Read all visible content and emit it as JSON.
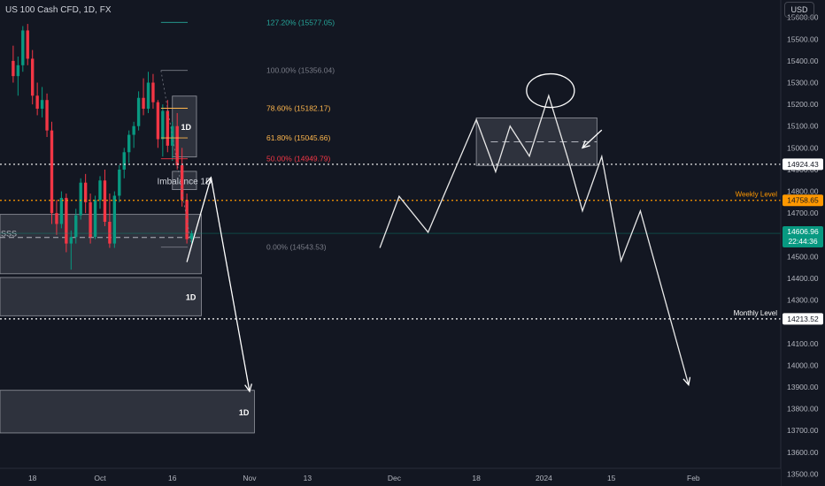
{
  "header": {
    "symbol": "US 100 Cash CFD, 1D, FX",
    "currency": "USD"
  },
  "chart_data": {
    "type": "candlestick",
    "y_axis": {
      "ticks": [
        "15600.00",
        "15500.00",
        "15400.00",
        "15300.00",
        "15200.00",
        "15100.00",
        "15000.00",
        "14900.00",
        "14800.00",
        "14700.00",
        "14600.00",
        "14500.00",
        "14400.00",
        "14300.00",
        "14200.00",
        "14100.00",
        "14000.00",
        "13900.00",
        "13800.00",
        "13700.00",
        "13600.00",
        "13500.00"
      ],
      "tick_values": [
        15600,
        15500,
        15400,
        15300,
        15200,
        15100,
        15000,
        14900,
        14800,
        14700,
        14600,
        14500,
        14400,
        14300,
        14200,
        14100,
        14000,
        13900,
        13800,
        13700,
        13600,
        13500
      ],
      "ylim": [
        13445,
        15680
      ]
    },
    "x_axis": {
      "ticks": [
        "18",
        "Oct",
        "16",
        "Nov",
        "13",
        "Dec",
        "18",
        "2024",
        "15",
        "Feb"
      ],
      "tick_days": [
        -14,
        0,
        15,
        31,
        43,
        61,
        78,
        92,
        106,
        123
      ]
    },
    "candles": [
      {
        "day": -18,
        "o": 15400,
        "h": 15470,
        "l": 15300,
        "c": 15330
      },
      {
        "day": -17,
        "o": 15330,
        "h": 15420,
        "l": 15240,
        "c": 15380
      },
      {
        "day": -16,
        "o": 15380,
        "h": 15560,
        "l": 15350,
        "c": 15540
      },
      {
        "day": -15,
        "o": 15540,
        "h": 15570,
        "l": 15380,
        "c": 15410
      },
      {
        "day": -14,
        "o": 15410,
        "h": 15450,
        "l": 15200,
        "c": 15240
      },
      {
        "day": -13,
        "o": 15240,
        "h": 15300,
        "l": 15150,
        "c": 15180
      },
      {
        "day": -12,
        "o": 15180,
        "h": 15280,
        "l": 15140,
        "c": 15220
      },
      {
        "day": -11,
        "o": 15220,
        "h": 15250,
        "l": 15050,
        "c": 15080
      },
      {
        "day": -10,
        "o": 15080,
        "h": 15120,
        "l": 14650,
        "c": 14700
      },
      {
        "day": -9,
        "o": 14700,
        "h": 14760,
        "l": 14600,
        "c": 14650
      },
      {
        "day": -8,
        "o": 14650,
        "h": 14800,
        "l": 14630,
        "c": 14770
      },
      {
        "day": -7,
        "o": 14770,
        "h": 14790,
        "l": 14520,
        "c": 14560
      },
      {
        "day": -6,
        "o": 14560,
        "h": 14620,
        "l": 14440,
        "c": 14590
      },
      {
        "day": -5,
        "o": 14590,
        "h": 14720,
        "l": 14560,
        "c": 14690
      },
      {
        "day": -4,
        "o": 14690,
        "h": 14860,
        "l": 14670,
        "c": 14840
      },
      {
        "day": -3,
        "o": 14840,
        "h": 14880,
        "l": 14700,
        "c": 14750
      },
      {
        "day": -2,
        "o": 14750,
        "h": 14790,
        "l": 14560,
        "c": 14590
      },
      {
        "day": -1,
        "o": 14590,
        "h": 14780,
        "l": 14580,
        "c": 14760
      },
      {
        "day": 0,
        "o": 14760,
        "h": 14870,
        "l": 14720,
        "c": 14850
      },
      {
        "day": 1,
        "o": 14850,
        "h": 14900,
        "l": 14640,
        "c": 14660
      },
      {
        "day": 2,
        "o": 14660,
        "h": 14790,
        "l": 14540,
        "c": 14560
      },
      {
        "day": 3,
        "o": 14560,
        "h": 14800,
        "l": 14540,
        "c": 14780
      },
      {
        "day": 4,
        "o": 14780,
        "h": 14920,
        "l": 14750,
        "c": 14900
      },
      {
        "day": 5,
        "o": 14900,
        "h": 15000,
        "l": 14860,
        "c": 14980
      },
      {
        "day": 6,
        "o": 14980,
        "h": 15080,
        "l": 14930,
        "c": 15060
      },
      {
        "day": 7,
        "o": 15060,
        "h": 15120,
        "l": 15000,
        "c": 15100
      },
      {
        "day": 8,
        "o": 15100,
        "h": 15260,
        "l": 15080,
        "c": 15230
      },
      {
        "day": 9,
        "o": 15230,
        "h": 15320,
        "l": 15150,
        "c": 15180
      },
      {
        "day": 10,
        "o": 15180,
        "h": 15350,
        "l": 15160,
        "c": 15300
      },
      {
        "day": 11,
        "o": 15300,
        "h": 15340,
        "l": 15180,
        "c": 15210
      },
      {
        "day": 12,
        "o": 15210,
        "h": 15220,
        "l": 15000,
        "c": 15040
      },
      {
        "day": 13,
        "o": 15040,
        "h": 15200,
        "l": 14960,
        "c": 15170
      },
      {
        "day": 14,
        "o": 15170,
        "h": 15220,
        "l": 14980,
        "c": 15010
      },
      {
        "day": 15,
        "o": 15010,
        "h": 15120,
        "l": 14940,
        "c": 15100
      },
      {
        "day": 16,
        "o": 15100,
        "h": 15160,
        "l": 14900,
        "c": 14920
      },
      {
        "day": 17,
        "o": 14920,
        "h": 15000,
        "l": 14730,
        "c": 14760
      },
      {
        "day": 18,
        "o": 14760,
        "h": 14790,
        "l": 14560,
        "c": 14580
      },
      {
        "day": 19,
        "o": 14580,
        "h": 14620,
        "l": 14560,
        "c": 14607
      }
    ],
    "colors": {
      "background": "#131722",
      "up": "#089981",
      "down": "#f23645",
      "axis_text": "#b2b5be",
      "projection": "#e8e8e8",
      "weekly": "#ff9800",
      "last_price": "#089981"
    },
    "fibonacci": [
      {
        "label": "127.20% (15577.05)",
        "price": 15577.05,
        "color": "#26a69a"
      },
      {
        "label": "100.00% (15356.04)",
        "price": 15356.04,
        "color": "#787b86"
      },
      {
        "label": "78.60% (15182.17)",
        "price": 15182.17,
        "color": "#ffb74d"
      },
      {
        "label": "61.80% (15045.66)",
        "price": 15045.66,
        "color": "#ffb74d"
      },
      {
        "label": "50.00% (14949.79)",
        "price": 14949.79,
        "color": "#f23645"
      },
      {
        "label": "0.00% (14543.53)",
        "price": 14543.53,
        "color": "#787b86"
      }
    ],
    "fib_day_range": [
      13,
      19
    ],
    "fib_line_extend_day": 20,
    "levels": [
      {
        "name": "Weekly Level",
        "price": 14758.65,
        "label": "Weekly Level",
        "badge": "14758.65",
        "color": "#ff9800",
        "style": "dotted"
      },
      {
        "name": "Monthly Level",
        "price": 14213.52,
        "label": "Monthly Level",
        "badge": "14213.52",
        "color": "#ffffff",
        "style": "dotted"
      },
      {
        "name": "Upper Level",
        "price": 14924.43,
        "label": "",
        "badge": "14924.43",
        "color": "#ffffff",
        "style": "dotted"
      }
    ],
    "last_price": {
      "price": 14606.96,
      "label": "14606.96",
      "countdown": "22:44:36"
    },
    "zones": [
      {
        "label": "1D",
        "day_from": 15,
        "day_to": 20,
        "price_top": 15238,
        "price_bottom": 14958
      },
      {
        "label": "Imbalance 1D",
        "day_from": 15,
        "day_to": 20,
        "price_top": 14892,
        "price_bottom": 14808
      },
      {
        "label": "",
        "day_from": -21,
        "day_to": 21,
        "price_top": 14694,
        "price_bottom": 14421
      },
      {
        "label": "1D",
        "day_from": -21,
        "day_to": 21,
        "price_top": 14404,
        "price_bottom": 14228
      },
      {
        "label": "1D",
        "day_from": -21,
        "day_to": 32,
        "price_top": 13885,
        "price_bottom": 13689
      },
      {
        "label": "",
        "day_from": 78,
        "day_to": 103,
        "price_top": 15138,
        "price_bottom": 14919
      }
    ],
    "sss_label": "SSS",
    "sss_line": {
      "day_from": -21,
      "day_to": 21,
      "price": 14588
    },
    "zone_dash": {
      "day_from": 81,
      "day_to": 103,
      "price": 15028
    },
    "projection_path": [
      {
        "day": 58,
        "price": 14540
      },
      {
        "day": 62,
        "price": 14777
      },
      {
        "day": 68,
        "price": 14612
      },
      {
        "day": 78,
        "price": 15130
      },
      {
        "day": 82,
        "price": 14890
      },
      {
        "day": 85,
        "price": 15100
      },
      {
        "day": 89,
        "price": 14962
      },
      {
        "day": 93,
        "price": 15240
      },
      {
        "day": 97,
        "price": 14950
      },
      {
        "day": 100,
        "price": 14710
      },
      {
        "day": 104,
        "price": 14960
      },
      {
        "day": 108,
        "price": 14480
      },
      {
        "day": 112,
        "price": 14710
      },
      {
        "day": 122,
        "price": 13910
      }
    ],
    "arrow_up": [
      {
        "day": 18,
        "price": 14475
      },
      {
        "day": 23,
        "price": 14864
      }
    ],
    "arrow_down": [
      {
        "day": 23,
        "price": 14864
      },
      {
        "day": 31,
        "price": 13880
      }
    ],
    "small_arrow": [
      {
        "day": 104,
        "price": 15082
      },
      {
        "day": 100,
        "price": 15000
      }
    ],
    "circle": {
      "day": 93,
      "price": 15255
    }
  }
}
